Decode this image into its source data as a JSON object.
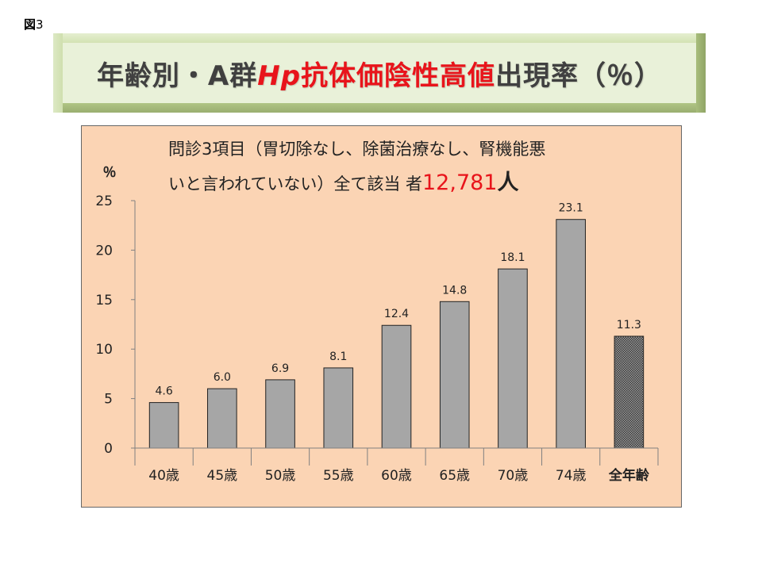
{
  "figure_label": {
    "kanji": "図",
    "number": "3"
  },
  "title": {
    "part1": "年齢別・A群",
    "part_hp": "Hp",
    "part2": "抗体価陰性高値",
    "part3": "出現率（％）"
  },
  "annotation": {
    "line1": "問診3項目（胃切除なし、除菌治療なし、腎機能悪",
    "line2_prefix": "いと言われていない）全て該当 者",
    "count": "12,781",
    "unit": "人"
  },
  "colors": {
    "bar": "#a6a6a6",
    "bar_total": "#7f7f7f",
    "chart_bg": "#fbd4b4",
    "title_bg": "#e9f1d9",
    "accent_red": "#e8141b"
  },
  "chart_data": {
    "type": "bar",
    "ylabel": "％",
    "ylim": [
      0,
      25
    ],
    "yticks": [
      0,
      5,
      10,
      15,
      20,
      25
    ],
    "grid": false,
    "legend": "none",
    "categories": [
      "40歳",
      "45歳",
      "50歳",
      "55歳",
      "60歳",
      "65歳",
      "70歳",
      "74歳",
      "全年齢"
    ],
    "values": [
      4.6,
      6.0,
      6.9,
      8.1,
      12.4,
      14.8,
      18.1,
      23.1,
      11.3
    ],
    "value_labels": [
      "4.6",
      "6.0",
      "6.9",
      "8.1",
      "12.4",
      "14.8",
      "18.1",
      "23.1",
      "11.3"
    ],
    "hatched_category": "全年齢"
  }
}
